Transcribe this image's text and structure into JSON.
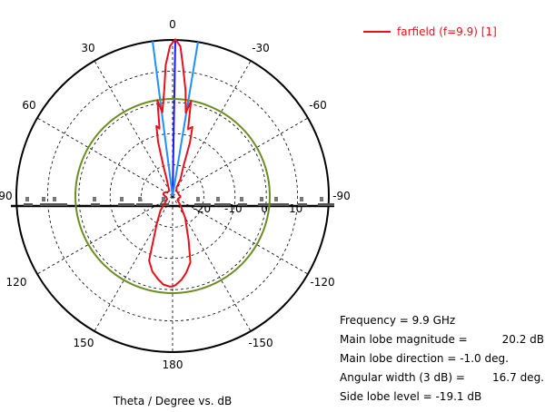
{
  "chart_data": {
    "type": "polar-line",
    "title": "",
    "xlabel": "Theta / Degree vs. dB",
    "legend": {
      "position": "top-right",
      "entries": [
        "farfield (f=9.9) [1]"
      ]
    },
    "angle_tick_labels": [
      "0",
      "30",
      "-30",
      "60",
      "-60",
      "90",
      "-90",
      "120",
      "-120",
      "150",
      "-150",
      "180"
    ],
    "radial_tick_labels": [
      "-20",
      "-10",
      "0",
      "10"
    ],
    "radial_range_db": [
      -30,
      20
    ],
    "series": [
      {
        "name": "farfield (f=9.9) [1]",
        "color": "#e8101a",
        "theta_deg": [
          -25,
          -20,
          -18,
          -16,
          -13,
          -11,
          -9,
          -7,
          -4.5,
          -3,
          -1,
          1,
          3,
          4.5,
          7,
          9,
          11,
          13,
          15,
          17,
          19,
          22,
          26,
          32,
          40,
          50,
          60,
          70,
          80,
          90,
          100,
          110,
          120,
          130,
          140,
          150,
          160,
          165,
          170,
          174,
          178,
          180,
          182,
          186,
          190,
          195,
          200,
          210,
          220,
          230,
          240,
          250,
          260,
          270,
          280,
          290,
          300,
          310,
          320,
          330,
          335
        ],
        "db": [
          -24,
          -20,
          -12,
          -7,
          -8,
          1,
          -3,
          4,
          12,
          18,
          20.2,
          18,
          12,
          4,
          -3,
          1,
          -8,
          -7,
          -12,
          -20,
          -24,
          -26,
          -27,
          -28,
          -28,
          -28,
          -27.5,
          -27,
          -27,
          -27.5,
          -28,
          -28,
          -28,
          -27,
          -24,
          -20,
          -8,
          -5,
          -3,
          -1.5,
          -1,
          -1,
          -1.5,
          -3,
          -5,
          -8,
          -15,
          -22,
          -26,
          -28,
          -28,
          -28,
          -27.5,
          -27.5,
          -28,
          -28,
          -28,
          -28,
          -28,
          -27.5,
          -27
        ]
      }
    ],
    "lines": [
      {
        "name": "main lobe direction",
        "color": "#1a1aff",
        "theta_deg": -1.0
      },
      {
        "name": "3 dB beam edge 1",
        "color": "#1e90ff",
        "theta_deg": -9.35
      },
      {
        "name": "3 dB beam edge 2",
        "color": "#1e90ff",
        "theta_deg": 7.35
      },
      {
        "name": "side lobe level circle",
        "color": "#6b8e23",
        "db": 1.1
      }
    ]
  },
  "info": {
    "frequency": "Frequency = 9.9 GHz",
    "main_lobe_magnitude_label": "Main lobe magnitude =",
    "main_lobe_magnitude_value": "20.2 dB",
    "main_lobe_direction": "Main lobe direction =  -1.0 deg.",
    "angular_width_label": "Angular width (3 dB) =",
    "angular_width_value": "16.7 deg.",
    "side_lobe_level": "Side lobe level =  -19.1 dB"
  }
}
